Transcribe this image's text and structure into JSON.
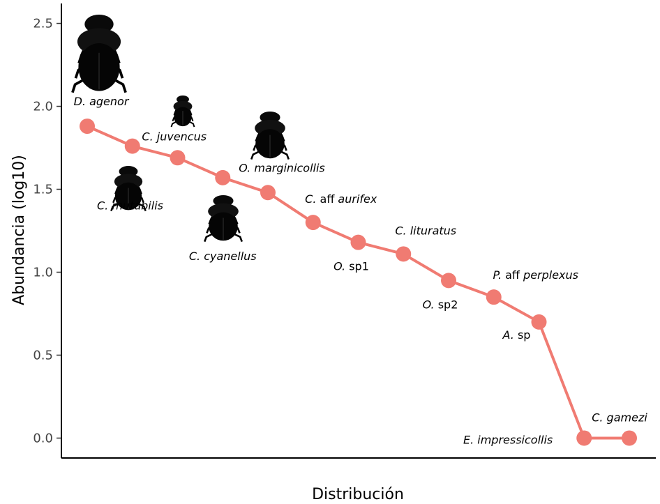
{
  "chart_data": {
    "type": "line",
    "title": "",
    "xlabel": "Distribución",
    "ylabel": "Abundancia (log10)",
    "ylim": [
      -0.12,
      2.62
    ],
    "yticks": [
      0.0,
      0.5,
      1.0,
      1.5,
      2.0,
      2.5
    ],
    "ytick_labels": [
      "0.0",
      "0.5",
      "1.0",
      "1.5",
      "2.0",
      "2.5"
    ],
    "grid": false,
    "legend": "none",
    "line_color": "#F07B72",
    "series": [
      {
        "values": [
          1.88,
          1.76,
          1.69,
          1.57,
          1.48,
          1.3,
          1.18,
          1.11,
          0.95,
          0.85,
          0.7,
          0.0,
          0.0
        ],
        "labels": [
          {
            "italic": "D. agenor",
            "rest": ""
          },
          {
            "italic": "C. juvencus",
            "rest": ""
          },
          {
            "italic": "C. mutabilis",
            "rest": ""
          },
          {
            "italic": "C. cyanellus",
            "rest": ""
          },
          {
            "italic": "O. marginicollis",
            "rest": ""
          },
          {
            "italic": "C.",
            "rest": " aff ",
            "italic2": "aurifex"
          },
          {
            "italic": "O.",
            "rest": " sp1"
          },
          {
            "italic": "C. lituratus",
            "rest": ""
          },
          {
            "italic": "O.",
            "rest": " sp2"
          },
          {
            "italic": "P.",
            "rest": " aff ",
            "italic2": "perplexus"
          },
          {
            "italic": "A.",
            "rest": " sp"
          },
          {
            "italic": "E. impressicollis",
            "rest": ""
          },
          {
            "italic": "C. gamezi",
            "rest": ""
          }
        ]
      }
    ],
    "icons": [
      "beetle-icon",
      "beetle-icon",
      "beetle-icon",
      "beetle-icon",
      "beetle-icon"
    ]
  }
}
